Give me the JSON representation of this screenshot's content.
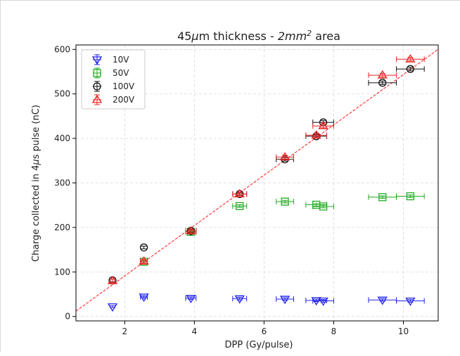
{
  "chart_data": {
    "type": "scatter",
    "title_parts": {
      "prefix": "45",
      "mu": "μ",
      "mid": "m thickness -  ",
      "area": "2",
      "mm": "mm",
      "sup": "2",
      "suffix": " area"
    },
    "xlabel": "DPP (Gy/pulse)",
    "ylabel_parts": {
      "prefix": "Charge collected in 4",
      "mu": "μ",
      "suffix": "s pulse (nC)"
    },
    "xlim": [
      0.6,
      11.0
    ],
    "ylim": [
      -10,
      610
    ],
    "xticks": [
      2,
      4,
      6,
      8,
      10
    ],
    "yticks": [
      0,
      100,
      200,
      300,
      400,
      500,
      600
    ],
    "grid": true,
    "legend_position": "top-left",
    "fit_line": {
      "color": "#ff2a2a",
      "x": [
        0.6,
        11.0
      ],
      "y": [
        12,
        600
      ]
    },
    "series": [
      {
        "name": "10V",
        "marker": "triangle-down",
        "color": "#2222ee",
        "x": [
          1.65,
          2.55,
          3.9,
          5.3,
          6.6,
          7.5,
          7.7,
          9.4,
          10.2
        ],
        "y": [
          22,
          44,
          41,
          40,
          39,
          36,
          35,
          37,
          35
        ],
        "xerr": [
          0.0,
          0.1,
          0.15,
          0.2,
          0.25,
          0.3,
          0.3,
          0.4,
          0.4
        ],
        "yerr": [
          2,
          3,
          3,
          3,
          3,
          3,
          3,
          3,
          3
        ]
      },
      {
        "name": "50V",
        "marker": "square",
        "color": "#22aa22",
        "x": [
          2.55,
          3.9,
          5.3,
          6.6,
          7.5,
          7.7,
          9.4,
          10.2
        ],
        "y": [
          123,
          190,
          248,
          258,
          251,
          247,
          268,
          270
        ],
        "xerr": [
          0.1,
          0.15,
          0.2,
          0.25,
          0.3,
          0.3,
          0.4,
          0.4
        ],
        "yerr": [
          3,
          3,
          3,
          3,
          3,
          3,
          3,
          3
        ]
      },
      {
        "name": "100V",
        "marker": "circle",
        "color": "#111111",
        "x": [
          1.65,
          2.55,
          3.9,
          5.3,
          6.6,
          7.5,
          7.7,
          9.4,
          10.2
        ],
        "y": [
          81,
          155,
          192,
          275,
          353,
          405,
          436,
          525,
          556
        ],
        "xerr": [
          0.0,
          0.0,
          0.15,
          0.2,
          0.25,
          0.3,
          0.3,
          0.4,
          0.4
        ],
        "yerr": [
          3,
          3,
          3,
          3,
          4,
          4,
          4,
          4,
          4
        ]
      },
      {
        "name": "200V",
        "marker": "triangle-up",
        "color": "#ee2222",
        "x": [
          1.65,
          2.55,
          3.9,
          5.3,
          6.6,
          7.5,
          7.7,
          9.4,
          10.2
        ],
        "y": [
          80,
          124,
          192,
          275,
          358,
          407,
          428,
          542,
          578
        ],
        "xerr": [
          0.0,
          0.1,
          0.15,
          0.2,
          0.25,
          0.3,
          0.3,
          0.4,
          0.4
        ],
        "yerr": [
          4,
          4,
          4,
          4,
          4,
          4,
          4,
          4,
          4
        ]
      }
    ]
  }
}
